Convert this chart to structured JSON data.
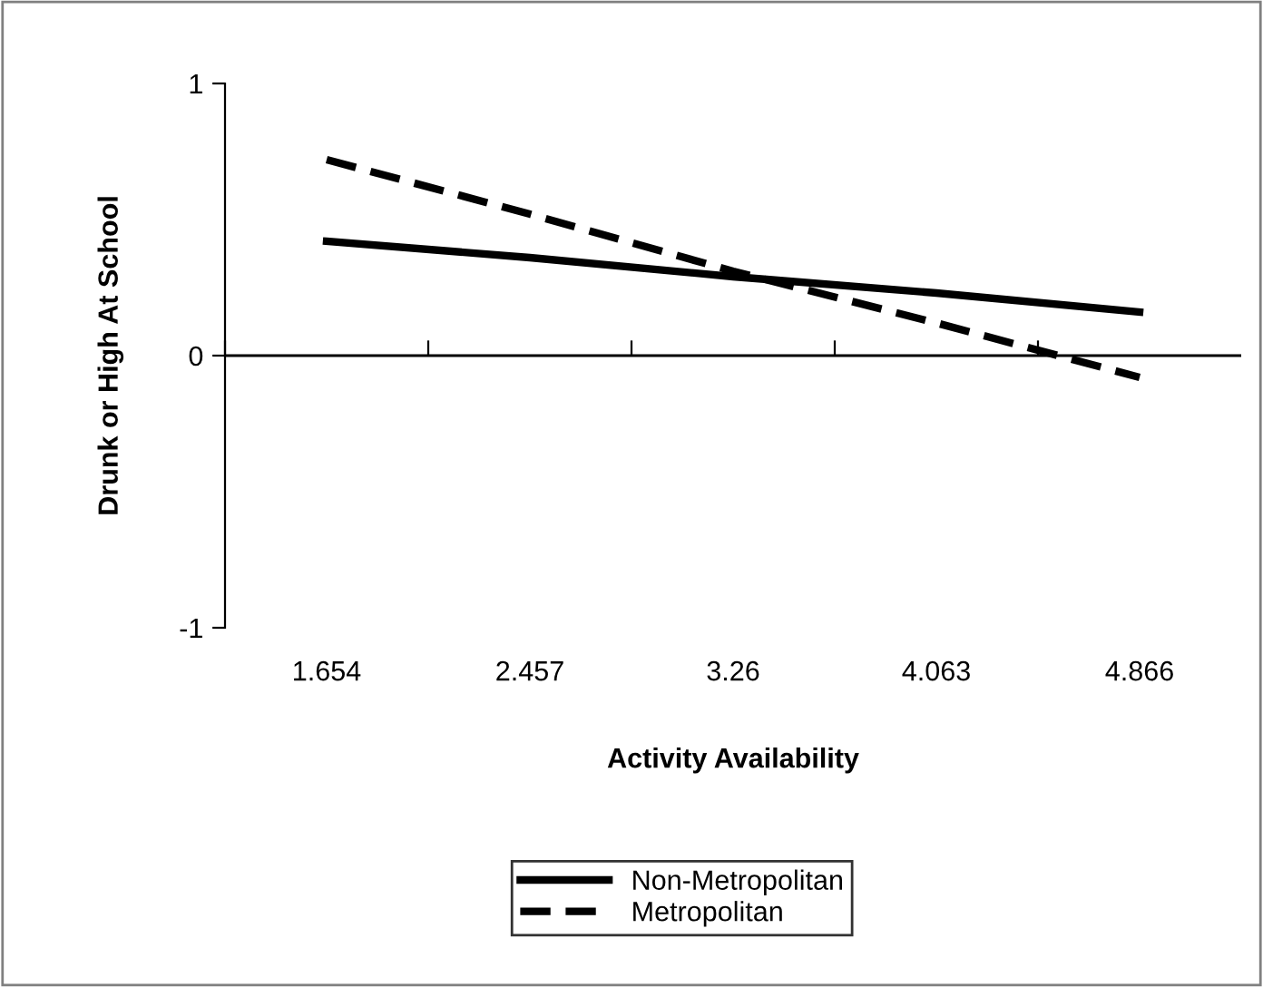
{
  "chart_data": {
    "type": "line",
    "xlabel": "Activity Availability",
    "ylabel": "Drunk or High At School",
    "categories": [
      "1.654",
      "2.457",
      "3.26",
      "4.063",
      "4.866"
    ],
    "series": [
      {
        "name": "Non-Metropolitan",
        "color": "#000000",
        "line_style": "solid",
        "values": [
          0.42,
          0.36,
          0.29,
          0.23,
          0.16
        ]
      },
      {
        "name": "Metropolitan",
        "color": "#000000",
        "line_style": "dashed",
        "values": [
          0.72,
          0.52,
          0.31,
          0.12,
          -0.08
        ]
      }
    ],
    "ylim": [
      -1,
      1
    ],
    "yticks": [
      -1,
      0,
      1
    ],
    "ref_lines": [
      {
        "axis": "y",
        "value": 0,
        "color": "#000000"
      }
    ],
    "legend": "bottom",
    "marker": "none"
  }
}
